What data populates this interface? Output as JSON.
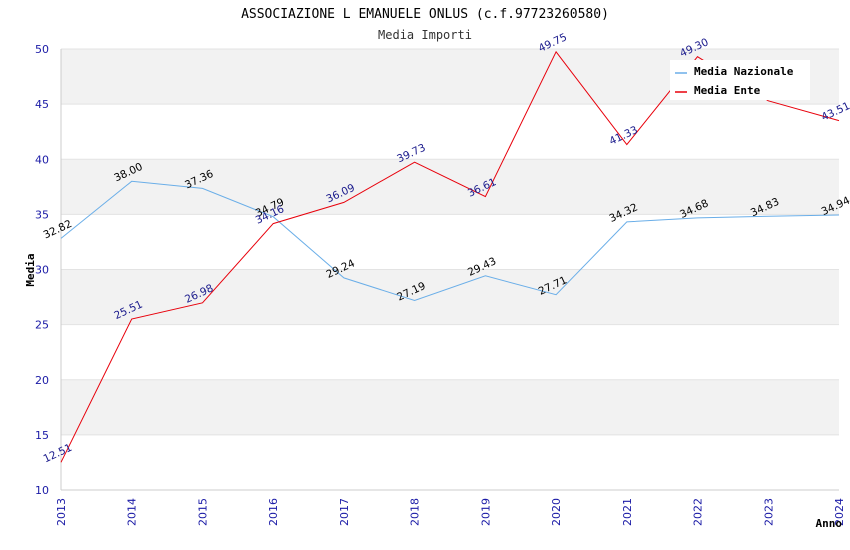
{
  "chart_data": {
    "type": "line",
    "title": "ASSOCIAZIONE L EMANUELE ONLUS (c.f.97723260580)",
    "subtitle": "Media Importi",
    "xlabel": "Anno",
    "ylabel": "Media",
    "ylim": [
      10,
      50
    ],
    "yticks": [
      10,
      15,
      20,
      25,
      30,
      35,
      40,
      45,
      50
    ],
    "x": [
      "2013",
      "2014",
      "2015",
      "2016",
      "2017",
      "2018",
      "2019",
      "2020",
      "2021",
      "2022",
      "2023",
      "2024"
    ],
    "grid": true,
    "legend_position": "top-right",
    "series": [
      {
        "name": "Media Nazionale",
        "color": "#6aaee8",
        "label_color": "#000000",
        "values": [
          32.82,
          38.0,
          37.36,
          34.79,
          29.24,
          27.19,
          29.43,
          27.71,
          34.32,
          34.68,
          34.83,
          34.94
        ],
        "labels": [
          "32.82",
          "38.00",
          "37.36",
          "34.79",
          "29.24",
          "27.19",
          "29.43",
          "27.71",
          "34.32",
          "34.68",
          "34.83",
          "34.94"
        ]
      },
      {
        "name": "Media Ente",
        "color": "#e8000b",
        "label_color": "#1a1a8c",
        "values": [
          12.51,
          25.51,
          26.98,
          34.16,
          36.09,
          39.73,
          36.61,
          49.75,
          41.33,
          49.3,
          45.3,
          43.51
        ],
        "labels": [
          "12.51",
          "25.51",
          "26.98",
          "34.16",
          "36.09",
          "39.73",
          "36.61",
          "49.75",
          "41.33",
          "49.30",
          "",
          "43.51"
        ]
      }
    ]
  }
}
